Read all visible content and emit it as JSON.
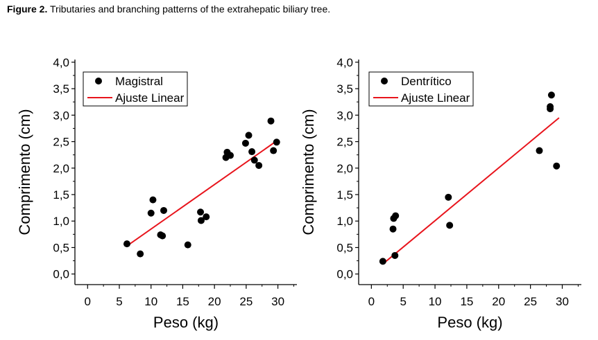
{
  "caption": {
    "figure_label": "Figure 2.",
    "text": "Tributaries and branching patterns of the extrahepatic biliary tree."
  },
  "colors": {
    "points": "#000000",
    "fit_line": "#e8141c",
    "axis": "#000000"
  },
  "chart_data": [
    {
      "type": "scatter",
      "xlabel": "Peso (kg)",
      "ylabel": "Comprimento (cm)",
      "xlim": [
        -2,
        33
      ],
      "ylim": [
        -0.2,
        4.05
      ],
      "x_ticks": [
        "0",
        "5",
        "10",
        "15",
        "20",
        "25",
        "30"
      ],
      "y_ticks": [
        "0,0",
        "0,5",
        "1,0",
        "1,5",
        "2,0",
        "2,5",
        "3,0",
        "3,5",
        "4,0"
      ],
      "legend": {
        "position": "top-left",
        "points_label": "Magistral",
        "line_label": "Ajuste Linear"
      },
      "series": [
        {
          "name": "Magistral",
          "points": [
            [
              6.2,
              0.57
            ],
            [
              8.3,
              0.38
            ],
            [
              10.0,
              1.15
            ],
            [
              10.3,
              1.4
            ],
            [
              11.5,
              0.74
            ],
            [
              11.8,
              0.72
            ],
            [
              12.0,
              1.2
            ],
            [
              15.8,
              0.55
            ],
            [
              17.8,
              1.17
            ],
            [
              17.9,
              1.01
            ],
            [
              18.7,
              1.08
            ],
            [
              21.8,
              2.2
            ],
            [
              22.0,
              2.3
            ],
            [
              22.5,
              2.24
            ],
            [
              24.9,
              2.47
            ],
            [
              25.4,
              2.62
            ],
            [
              25.9,
              2.31
            ],
            [
              26.3,
              2.15
            ],
            [
              27.0,
              2.05
            ],
            [
              28.9,
              2.89
            ],
            [
              29.3,
              2.33
            ],
            [
              29.8,
              2.49
            ]
          ]
        }
      ],
      "fit": {
        "name": "Ajuste Linear",
        "x": [
          6.2,
          30.0
        ],
        "y": [
          0.53,
          2.53
        ]
      }
    },
    {
      "type": "scatter",
      "xlabel": "Peso (kg)",
      "ylabel": "Comprimento (cm)",
      "xlim": [
        -2,
        33
      ],
      "ylim": [
        -0.2,
        4.05
      ],
      "x_ticks": [
        "0",
        "5",
        "10",
        "15",
        "20",
        "25",
        "30"
      ],
      "y_ticks": [
        "0,0",
        "0,5",
        "1,0",
        "1,5",
        "2,0",
        "2,5",
        "3,0",
        "3,5",
        "4,0"
      ],
      "legend": {
        "position": "top-left",
        "points_label": "Dentrítico",
        "line_label": "Ajuste Linear"
      },
      "series": [
        {
          "name": "Dentrítico",
          "points": [
            [
              1.8,
              0.24
            ],
            [
              3.4,
              0.85
            ],
            [
              3.5,
              1.05
            ],
            [
              3.7,
              0.35
            ],
            [
              3.8,
              1.1
            ],
            [
              12.1,
              1.45
            ],
            [
              12.3,
              0.92
            ],
            [
              26.4,
              2.33
            ],
            [
              28.1,
              3.12
            ],
            [
              28.1,
              3.16
            ],
            [
              28.3,
              3.38
            ],
            [
              29.1,
              2.04
            ]
          ]
        }
      ],
      "fit": {
        "name": "Ajuste Linear",
        "x": [
          1.8,
          29.5
        ],
        "y": [
          0.19,
          2.95
        ]
      }
    }
  ]
}
